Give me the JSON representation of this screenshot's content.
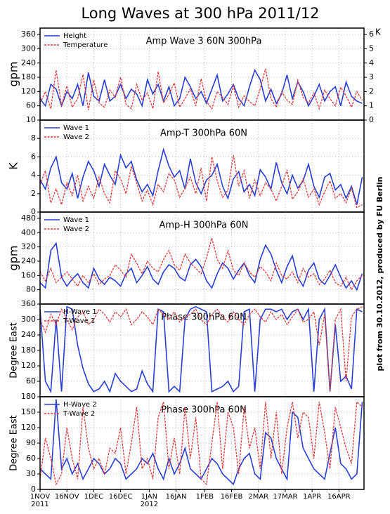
{
  "title": "Long Waves at 300 hPa 2011/12",
  "credit": "plot from 30.10.2012, produced by FU Berlin",
  "chart_data": [
    {
      "type": "line",
      "title": "Amp Wave 3 60N 300hPa",
      "ylabel": "gpm",
      "y2label": "K",
      "x": [
        0,
        3,
        6,
        9,
        12,
        15,
        18,
        21,
        24,
        27,
        30,
        33,
        36,
        39,
        42,
        45,
        48,
        51,
        54,
        57,
        60,
        63,
        66,
        69,
        72,
        75,
        78,
        81,
        84,
        87,
        90,
        93,
        96,
        99,
        102,
        105,
        108,
        111,
        114,
        117,
        120,
        123,
        126,
        129,
        132,
        135,
        138,
        141,
        144,
        147,
        150,
        153,
        156,
        159,
        162,
        165,
        168,
        171,
        174,
        177,
        180
      ],
      "xlim": [
        0,
        181
      ],
      "ylim": [
        0,
        387
      ],
      "yticks": [
        60,
        120,
        180,
        240,
        300,
        360
      ],
      "y2lim": [
        0,
        6.45
      ],
      "y2ticks": [
        0,
        1,
        2,
        3,
        4,
        5,
        6
      ],
      "grid": true,
      "legend": "upper left",
      "series": [
        {
          "name": "Height",
          "color": "#2a3fd4",
          "style": "solid",
          "values": [
            90,
            60,
            150,
            130,
            60,
            120,
            90,
            150,
            60,
            200,
            100,
            80,
            170,
            80,
            100,
            150,
            90,
            130,
            110,
            60,
            170,
            110,
            150,
            80,
            140,
            60,
            90,
            180,
            140,
            90,
            120,
            70,
            130,
            190,
            80,
            110,
            150,
            90,
            60,
            140,
            210,
            170,
            80,
            130,
            70,
            110,
            190,
            90,
            160,
            120,
            60,
            100,
            150,
            80,
            120,
            140,
            60,
            160,
            100,
            80,
            70
          ]
        },
        {
          "name": "Temperature",
          "color": "#e03a3a",
          "style": "dashed",
          "axis": "y2",
          "values": [
            1.2,
            2.0,
            0.8,
            3.5,
            1.0,
            2.4,
            0.9,
            1.5,
            3.2,
            0.7,
            2.8,
            1.2,
            0.9,
            2.1,
            1.6,
            3.0,
            1.1,
            0.8,
            2.5,
            1.4,
            1.9,
            0.8,
            3.4,
            1.2,
            1.8,
            2.6,
            0.9,
            1.5,
            2.2,
            1.0,
            2.9,
            1.3,
            0.8,
            2.0,
            1.6,
            1.1,
            2.4,
            0.9,
            1.7,
            1.3,
            1.0,
            2.2,
            3.6,
            1.5,
            0.9,
            2.0,
            1.4,
            1.1,
            2.8,
            1.6,
            1.2,
            1.9,
            0.8,
            2.1,
            1.5,
            1.0,
            2.3,
            1.7,
            0.9,
            2.0,
            1.4
          ]
        }
      ]
    },
    {
      "type": "line",
      "title": "Amp-T 300hPa 60N",
      "ylabel": "K",
      "x": [
        0,
        3,
        6,
        9,
        12,
        15,
        18,
        21,
        24,
        27,
        30,
        33,
        36,
        39,
        42,
        45,
        48,
        51,
        54,
        57,
        60,
        63,
        66,
        69,
        72,
        75,
        78,
        81,
        84,
        87,
        90,
        93,
        96,
        99,
        102,
        105,
        108,
        111,
        114,
        117,
        120,
        123,
        126,
        129,
        132,
        135,
        138,
        141,
        144,
        147,
        150,
        153,
        156,
        159,
        162,
        165,
        168,
        171,
        174,
        177,
        180
      ],
      "xlim": [
        0,
        181
      ],
      "ylim": [
        0,
        10
      ],
      "yticks": [
        0,
        2,
        4,
        6,
        8,
        10
      ],
      "grid": true,
      "legend": "upper left",
      "series": [
        {
          "name": "Wave 1",
          "color": "#2a3fd4",
          "style": "solid",
          "values": [
            3.5,
            2.5,
            4.8,
            6.0,
            3.2,
            2.5,
            4.2,
            1.5,
            3.8,
            5.5,
            4.5,
            2.8,
            5.2,
            4.0,
            3.0,
            6.2,
            4.8,
            5.5,
            3.5,
            2.2,
            3.0,
            1.8,
            4.5,
            6.8,
            5.0,
            3.8,
            4.5,
            2.5,
            5.8,
            3.2,
            2.0,
            3.5,
            4.0,
            5.2,
            2.8,
            1.5,
            3.6,
            4.4,
            2.2,
            3.0,
            1.8,
            4.6,
            3.8,
            2.5,
            5.4,
            3.2,
            2.0,
            4.0,
            2.6,
            3.4,
            5.2,
            2.8,
            1.6,
            3.8,
            4.2,
            2.4,
            3.0,
            1.5,
            2.8,
            0.8,
            3.8
          ]
        },
        {
          "name": "Wave 2",
          "color": "#e03a3a",
          "style": "dashed",
          "values": [
            3.0,
            4.5,
            1.0,
            2.5,
            0.8,
            3.2,
            1.8,
            4.0,
            1.2,
            2.8,
            1.5,
            3.8,
            2.0,
            1.0,
            4.5,
            3.6,
            2.0,
            5.0,
            3.2,
            1.2,
            2.4,
            0.8,
            3.0,
            2.2,
            4.2,
            3.5,
            1.6,
            2.6,
            3.8,
            2.0,
            4.8,
            1.2,
            6.0,
            3.4,
            1.6,
            2.4,
            6.2,
            2.8,
            4.5,
            1.5,
            3.5,
            1.8,
            3.2,
            2.5,
            1.2,
            2.8,
            4.6,
            1.4,
            2.2,
            3.6,
            1.6,
            2.5,
            0.8,
            2.2,
            3.4,
            1.5,
            2.0,
            1.0,
            2.6,
            0.5,
            0.8
          ]
        }
      ]
    },
    {
      "type": "line",
      "title": "Amp-H 300hPa 60N",
      "ylabel": "gpm",
      "x": [
        0,
        3,
        6,
        9,
        12,
        15,
        18,
        21,
        24,
        27,
        30,
        33,
        36,
        39,
        42,
        45,
        48,
        51,
        54,
        57,
        60,
        63,
        66,
        69,
        72,
        75,
        78,
        81,
        84,
        87,
        90,
        93,
        96,
        99,
        102,
        105,
        108,
        111,
        114,
        117,
        120,
        123,
        126,
        129,
        132,
        135,
        138,
        141,
        144,
        147,
        150,
        153,
        156,
        159,
        162,
        165,
        168,
        171,
        174,
        177,
        180
      ],
      "xlim": [
        0,
        181
      ],
      "ylim": [
        0,
        515
      ],
      "yticks": [
        80,
        160,
        240,
        320,
        400,
        480
      ],
      "grid": true,
      "legend": "upper left",
      "series": [
        {
          "name": "Wave 1",
          "color": "#2a3fd4",
          "style": "solid",
          "values": [
            120,
            90,
            300,
            340,
            150,
            100,
            140,
            170,
            120,
            90,
            200,
            140,
            110,
            150,
            130,
            100,
            170,
            200,
            120,
            160,
            210,
            140,
            110,
            180,
            220,
            200,
            150,
            130,
            220,
            250,
            210,
            130,
            90,
            170,
            230,
            200,
            140,
            190,
            230,
            160,
            120,
            250,
            330,
            280,
            190,
            120,
            210,
            270,
            150,
            100,
            190,
            230,
            140,
            110,
            160,
            220,
            150,
            90,
            130,
            80,
            170
          ]
        },
        {
          "name": "Wave 2",
          "color": "#e03a3a",
          "style": "dashed",
          "values": [
            180,
            130,
            200,
            120,
            150,
            180,
            140,
            100,
            160,
            120,
            170,
            110,
            140,
            160,
            220,
            190,
            150,
            280,
            230,
            170,
            240,
            200,
            180,
            250,
            300,
            220,
            190,
            280,
            230,
            200,
            170,
            260,
            370,
            250,
            200,
            300,
            190,
            160,
            230,
            180,
            150,
            210,
            180,
            130,
            230,
            160,
            140,
            180,
            120,
            200,
            150,
            170,
            110,
            140,
            190,
            120,
            100,
            150,
            80,
            130,
            160
          ]
        }
      ]
    },
    {
      "type": "line",
      "title": "Phase 300hPa 60N",
      "ylabel": "Degree East",
      "x": [
        0,
        3,
        6,
        9,
        12,
        15,
        18,
        21,
        24,
        27,
        30,
        33,
        36,
        39,
        42,
        45,
        48,
        51,
        54,
        57,
        60,
        63,
        66,
        69,
        72,
        75,
        78,
        81,
        84,
        87,
        90,
        93,
        96,
        99,
        102,
        105,
        108,
        111,
        114,
        117,
        120,
        123,
        126,
        129,
        132,
        135,
        138,
        141,
        144,
        147,
        150,
        153,
        156,
        159,
        162,
        165,
        168,
        171,
        174,
        177,
        180
      ],
      "xlim": [
        0,
        181
      ],
      "ylim": [
        0,
        360
      ],
      "yticks": [
        60,
        120,
        180,
        240,
        300,
        360
      ],
      "grid": true,
      "legend": "upper left",
      "series": [
        {
          "name": "H-Wave 1",
          "color": "#2a3fd4",
          "style": "solid",
          "values": [
            340,
            60,
            20,
            300,
            20,
            350,
            340,
            200,
            110,
            50,
            20,
            30,
            60,
            20,
            90,
            60,
            40,
            20,
            30,
            100,
            50,
            20,
            340,
            330,
            20,
            40,
            20,
            300,
            340,
            350,
            340,
            330,
            20,
            30,
            40,
            60,
            20,
            40,
            330,
            340,
            20,
            300,
            340,
            340,
            330,
            340,
            300,
            330,
            340,
            300,
            340,
            20,
            300,
            340,
            20,
            280,
            60,
            80,
            30,
            340,
            330
          ]
        },
        {
          "name": "T-Wave 1",
          "color": "#e03a3a",
          "style": "dashed",
          "values": [
            300,
            250,
            320,
            280,
            340,
            300,
            260,
            310,
            330,
            280,
            300,
            340,
            320,
            290,
            330,
            310,
            340,
            280,
            300,
            330,
            310,
            280,
            340,
            320,
            300,
            330,
            290,
            310,
            320,
            340,
            300,
            280,
            320,
            340,
            310,
            290,
            330,
            300,
            280,
            320,
            340,
            310,
            290,
            330,
            300,
            320,
            280,
            310,
            340,
            290,
            300,
            330,
            200,
            320,
            20,
            300,
            340,
            60,
            310,
            340,
            350
          ]
        }
      ]
    },
    {
      "type": "line",
      "title": "Phase 300hPa 60N",
      "ylabel": "Degree East",
      "x": [
        0,
        3,
        6,
        9,
        12,
        15,
        18,
        21,
        24,
        27,
        30,
        33,
        36,
        39,
        42,
        45,
        48,
        51,
        54,
        57,
        60,
        63,
        66,
        69,
        72,
        75,
        78,
        81,
        84,
        87,
        90,
        93,
        96,
        99,
        102,
        105,
        108,
        111,
        114,
        117,
        120,
        123,
        126,
        129,
        132,
        135,
        138,
        141,
        144,
        147,
        150,
        153,
        156,
        159,
        162,
        165,
        168,
        171,
        174,
        177,
        180
      ],
      "xlim": [
        0,
        181
      ],
      "ylim": [
        0,
        180
      ],
      "yticks": [
        0,
        30,
        60,
        90,
        120,
        150,
        180
      ],
      "grid": true,
      "legend": "upper left",
      "xticks": [
        {
          "value": 0,
          "label": "1NOV"
        },
        {
          "value": 15,
          "label": "16NOV"
        },
        {
          "value": 30,
          "label": "1DEC"
        },
        {
          "value": 45,
          "label": "16DEC"
        },
        {
          "value": 61,
          "label": "1JAN"
        },
        {
          "value": 76,
          "label": "16JAN"
        },
        {
          "value": 92,
          "label": "1FEB"
        },
        {
          "value": 107,
          "label": "16FEB"
        },
        {
          "value": 122,
          "label": "2MAR"
        },
        {
          "value": 137,
          "label": "17MAR"
        },
        {
          "value": 152,
          "label": "1APR"
        },
        {
          "value": 167,
          "label": "16APR"
        }
      ],
      "xtick_years": [
        {
          "value": 0,
          "label": "2011"
        },
        {
          "value": 61,
          "label": "2012"
        }
      ],
      "series": [
        {
          "name": "H-Wave 2",
          "color": "#2a3fd4",
          "style": "solid",
          "values": [
            40,
            30,
            20,
            175,
            40,
            60,
            30,
            50,
            20,
            40,
            60,
            50,
            30,
            40,
            60,
            50,
            20,
            30,
            40,
            60,
            50,
            70,
            40,
            20,
            60,
            30,
            50,
            80,
            40,
            30,
            20,
            40,
            60,
            50,
            30,
            20,
            10,
            40,
            60,
            70,
            30,
            20,
            110,
            100,
            60,
            40,
            20,
            150,
            140,
            80,
            60,
            40,
            30,
            20,
            70,
            120,
            50,
            40,
            20,
            30,
            170
          ]
        },
        {
          "name": "T-Wave 2",
          "color": "#e03a3a",
          "style": "dashed",
          "values": [
            20,
            100,
            60,
            10,
            30,
            120,
            60,
            20,
            160,
            80,
            40,
            60,
            30,
            80,
            70,
            120,
            30,
            90,
            160,
            40,
            60,
            20,
            140,
            170,
            40,
            100,
            30,
            160,
            60,
            140,
            20,
            10,
            90,
            170,
            40,
            150,
            120,
            30,
            160,
            80,
            120,
            40,
            170,
            60,
            150,
            30,
            120,
            170,
            100,
            150,
            140,
            60,
            170,
            110,
            40,
            160,
            120,
            80,
            50,
            170,
            160
          ]
        }
      ]
    }
  ]
}
